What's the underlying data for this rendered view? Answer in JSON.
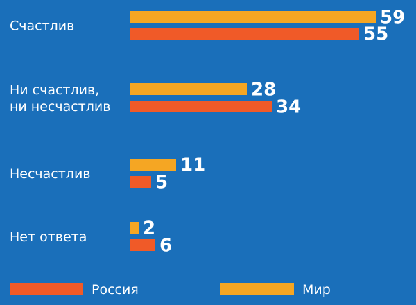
{
  "chart_data": {
    "type": "bar",
    "orientation": "horizontal",
    "categories": [
      [
        "Счастлив"
      ],
      [
        "Ни счастлив,",
        "ни несчастлив"
      ],
      [
        "Несчастлив"
      ],
      [
        "Нет ответа"
      ]
    ],
    "series": [
      {
        "name": "Мир",
        "color": "#f5a623",
        "values": [
          59,
          28,
          11,
          2
        ]
      },
      {
        "name": "Россия",
        "color": "#f05a28",
        "values": [
          55,
          34,
          5,
          6
        ]
      }
    ],
    "legend_order": [
      1,
      0
    ],
    "legend_position": "bottom",
    "xlim": [
      0,
      60
    ],
    "grid": false,
    "background": "#1a6fba"
  }
}
